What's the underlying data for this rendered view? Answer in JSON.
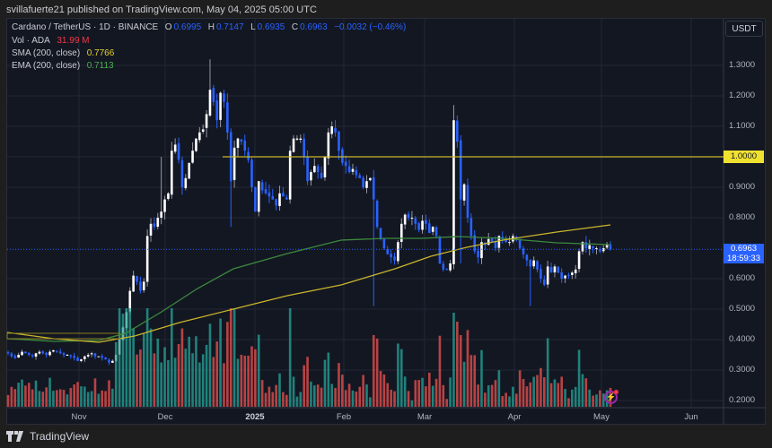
{
  "header": {
    "published": "svillafuerte21 published on TradingView.com, May 04, 2025 05:00 UTC"
  },
  "legend": {
    "symbol": "Cardano / TetherUS · 1D · BINANCE",
    "o_label": "O",
    "o": "0.6995",
    "h_label": "H",
    "h": "0.7147",
    "l_label": "L",
    "l": "0.6935",
    "c_label": "C",
    "c": "0.6963",
    "change": "−0.0032 (−0.46%)",
    "vol_label": "Vol · ADA",
    "vol": "31.99 M",
    "sma_label": "SMA (200, close)",
    "sma": "0.7766",
    "ema_label": "EMA (200, close)",
    "ema": "0.7113"
  },
  "price_axis": {
    "currency": "USDT",
    "ticks": [
      "1.3000",
      "1.2000",
      "1.1000",
      "1.0000",
      "0.9000",
      "0.8000",
      "0.6000",
      "0.5000",
      "0.4000",
      "0.3000",
      "0.2000"
    ],
    "level_label": "1.0000",
    "last_price": "0.6963",
    "countdown": "18:59:33"
  },
  "time_axis": {
    "ticks": [
      {
        "label": "Nov",
        "x": 88,
        "bold": false
      },
      {
        "label": "Dec",
        "x": 184,
        "bold": false
      },
      {
        "label": "2025",
        "x": 284,
        "bold": true
      },
      {
        "label": "Feb",
        "x": 383,
        "bold": false
      },
      {
        "label": "Mar",
        "x": 473,
        "bold": false
      },
      {
        "label": "Apr",
        "x": 573,
        "bold": false
      },
      {
        "label": "May",
        "x": 670,
        "bold": false
      },
      {
        "label": "Jun",
        "x": 770,
        "bold": false
      }
    ]
  },
  "footer": {
    "brand": "TradingView"
  },
  "colors": {
    "up": "#ffffff",
    "down": "#2962ff",
    "vol_up": "#26a69a",
    "vol_down": "#ef5350",
    "sma": "#c9b52c",
    "ema": "#3c8a3c",
    "level": "#c9b52c"
  },
  "chart_data": {
    "type": "candlestick",
    "title": "Cardano / TetherUS · 1D · BINANCE",
    "ylabel": "USDT",
    "ylim": [
      0.18,
      1.36
    ],
    "x_range": [
      "2024-10-06",
      "2025-06-10"
    ],
    "horizontal_level": 1.0,
    "support_zone": [
      0.41,
      0.43
    ],
    "weekly_closes": [
      {
        "date": "2024-10-07",
        "close": 0.35
      },
      {
        "date": "2024-10-14",
        "close": 0.36
      },
      {
        "date": "2024-10-21",
        "close": 0.35
      },
      {
        "date": "2024-10-28",
        "close": 0.33
      },
      {
        "date": "2024-11-04",
        "close": 0.4
      },
      {
        "date": "2024-11-11",
        "close": 0.56
      },
      {
        "date": "2024-11-18",
        "close": 0.8
      },
      {
        "date": "2024-11-25",
        "close": 1.03
      },
      {
        "date": "2024-12-02",
        "close": 1.2
      },
      {
        "date": "2024-12-09",
        "close": 1.08
      },
      {
        "date": "2024-12-16",
        "close": 0.91
      },
      {
        "date": "2024-12-23",
        "close": 0.87
      },
      {
        "date": "2024-12-30",
        "close": 1.07
      },
      {
        "date": "2025-01-06",
        "close": 0.98
      },
      {
        "date": "2025-01-13",
        "close": 1.1
      },
      {
        "date": "2025-01-20",
        "close": 0.98
      },
      {
        "date": "2025-01-27",
        "close": 0.93
      },
      {
        "date": "2025-02-03",
        "close": 0.68
      },
      {
        "date": "2025-02-10",
        "close": 0.8
      },
      {
        "date": "2025-02-17",
        "close": 0.75
      },
      {
        "date": "2025-02-24",
        "close": 0.64
      },
      {
        "date": "2025-03-03",
        "close": 0.82
      },
      {
        "date": "2025-03-10",
        "close": 0.72
      },
      {
        "date": "2025-03-17",
        "close": 0.72
      },
      {
        "date": "2025-03-24",
        "close": 0.73
      },
      {
        "date": "2025-03-31",
        "close": 0.65
      },
      {
        "date": "2025-04-07",
        "close": 0.6
      },
      {
        "date": "2025-04-14",
        "close": 0.62
      },
      {
        "date": "2025-04-21",
        "close": 0.72
      },
      {
        "date": "2025-04-28",
        "close": 0.7
      },
      {
        "date": "2025-05-04",
        "close": 0.6963
      }
    ],
    "sma_200_end": 0.7766,
    "ema_200_end": 0.7113,
    "last": {
      "open": 0.6995,
      "high": 0.7147,
      "low": 0.6935,
      "close": 0.6963,
      "volume_m": 31.99
    },
    "notable_wicks": [
      {
        "date": "2024-12-03",
        "high": 1.32
      },
      {
        "date": "2025-02-03",
        "low": 0.51
      },
      {
        "date": "2025-03-02",
        "high": 1.17
      },
      {
        "date": "2025-04-07",
        "low": 0.51
      }
    ]
  },
  "series": {
    "closes": [
      0.355,
      0.345,
      0.34,
      0.35,
      0.36,
      0.355,
      0.35,
      0.345,
      0.355,
      0.36,
      0.355,
      0.35,
      0.36,
      0.365,
      0.36,
      0.355,
      0.35,
      0.35,
      0.345,
      0.34,
      0.33,
      0.335,
      0.345,
      0.35,
      0.355,
      0.345,
      0.345,
      0.34,
      0.335,
      0.325,
      0.33,
      0.35,
      0.4,
      0.44,
      0.49,
      0.56,
      0.61,
      0.59,
      0.56,
      0.59,
      0.74,
      0.78,
      0.77,
      0.8,
      0.82,
      0.86,
      0.88,
      1.02,
      1.04,
      0.99,
      0.9,
      0.93,
      0.98,
      1.02,
      1.06,
      1.08,
      1.09,
      1.14,
      1.22,
      1.18,
      1.12,
      1.21,
      1.18,
      1.08,
      0.92,
      1.03,
      1.06,
      1.05,
      1.02,
      0.99,
      0.9,
      0.82,
      0.92,
      0.89,
      0.88,
      0.87,
      0.86,
      0.84,
      0.88,
      0.87,
      0.86,
      1.02,
      1.06,
      1.06,
      1.06,
      1.0,
      0.92,
      0.95,
      0.97,
      0.95,
      0.93,
      1.0,
      1.08,
      1.1,
      1.08,
      1.02,
      0.98,
      0.97,
      0.95,
      0.96,
      0.94,
      0.93,
      0.9,
      0.92,
      0.93,
      0.86,
      0.77,
      0.73,
      0.7,
      0.68,
      0.67,
      0.66,
      0.72,
      0.78,
      0.81,
      0.8,
      0.8,
      0.78,
      0.76,
      0.79,
      0.78,
      0.75,
      0.77,
      0.74,
      0.65,
      0.63,
      0.63,
      0.65,
      1.12,
      1.05,
      0.86,
      0.91,
      0.8,
      0.74,
      0.69,
      0.67,
      0.72,
      0.71,
      0.73,
      0.72,
      0.7,
      0.74,
      0.73,
      0.72,
      0.72,
      0.74,
      0.73,
      0.7,
      0.68,
      0.66,
      0.64,
      0.66,
      0.63,
      0.6,
      0.58,
      0.64,
      0.62,
      0.64,
      0.62,
      0.6,
      0.61,
      0.61,
      0.62,
      0.63,
      0.69,
      0.72,
      0.7,
      0.71,
      0.7,
      0.7,
      0.69,
      0.7,
      0.71,
      0.6963
    ]
  }
}
